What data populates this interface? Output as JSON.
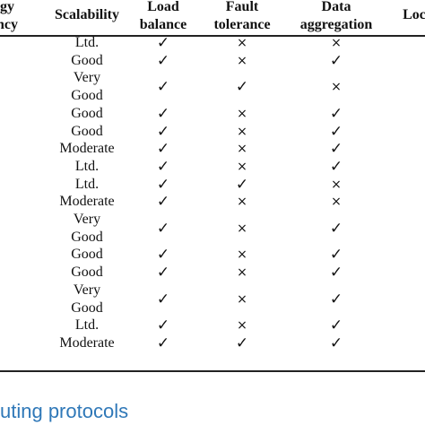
{
  "table": {
    "header": [
      [
        "gy",
        "ncy"
      ],
      [
        "Scalability"
      ],
      [
        "Load",
        "balance"
      ],
      [
        "Fault",
        "tolerance"
      ],
      [
        "Data",
        "aggregation"
      ],
      [
        "Loc"
      ]
    ],
    "rows": [
      {
        "scalability": [
          "Ltd."
        ],
        "load_balance": "✓",
        "fault_tolerance": "×",
        "data_aggregation": "×"
      },
      {
        "scalability": [
          "Good"
        ],
        "load_balance": "✓",
        "fault_tolerance": "×",
        "data_aggregation": "✓"
      },
      {
        "scalability": [
          "Very",
          "Good"
        ],
        "load_balance": "✓",
        "fault_tolerance": "✓",
        "data_aggregation": "×"
      },
      {
        "scalability": [
          "Good"
        ],
        "load_balance": "✓",
        "fault_tolerance": "×",
        "data_aggregation": "✓"
      },
      {
        "scalability": [
          "Good"
        ],
        "load_balance": "✓",
        "fault_tolerance": "×",
        "data_aggregation": "✓"
      },
      {
        "scalability": [
          "Moderate"
        ],
        "load_balance": "✓",
        "fault_tolerance": "×",
        "data_aggregation": "✓"
      },
      {
        "scalability": [
          "Ltd."
        ],
        "load_balance": "✓",
        "fault_tolerance": "×",
        "data_aggregation": "✓"
      },
      {
        "scalability": [
          "Ltd."
        ],
        "load_balance": "✓",
        "fault_tolerance": "✓",
        "data_aggregation": "×"
      },
      {
        "scalability": [
          "Moderate"
        ],
        "load_balance": "✓",
        "fault_tolerance": "×",
        "data_aggregation": "×"
      },
      {
        "scalability": [
          "Very",
          "Good"
        ],
        "load_balance": "✓",
        "fault_tolerance": "×",
        "data_aggregation": "✓"
      },
      {
        "scalability": [
          "Good"
        ],
        "load_balance": "✓",
        "fault_tolerance": "×",
        "data_aggregation": "✓"
      },
      {
        "scalability": [
          "Good"
        ],
        "load_balance": "✓",
        "fault_tolerance": "×",
        "data_aggregation": "✓"
      },
      {
        "scalability": [
          "Very",
          "Good"
        ],
        "load_balance": "✓",
        "fault_tolerance": "×",
        "data_aggregation": "✓"
      },
      {
        "scalability": [
          "Ltd."
        ],
        "load_balance": "✓",
        "fault_tolerance": "×",
        "data_aggregation": "✓"
      },
      {
        "scalability": [
          "Moderate"
        ],
        "load_balance": "✓",
        "fault_tolerance": "✓",
        "data_aggregation": "✓"
      }
    ],
    "caption": "uting protocols"
  }
}
